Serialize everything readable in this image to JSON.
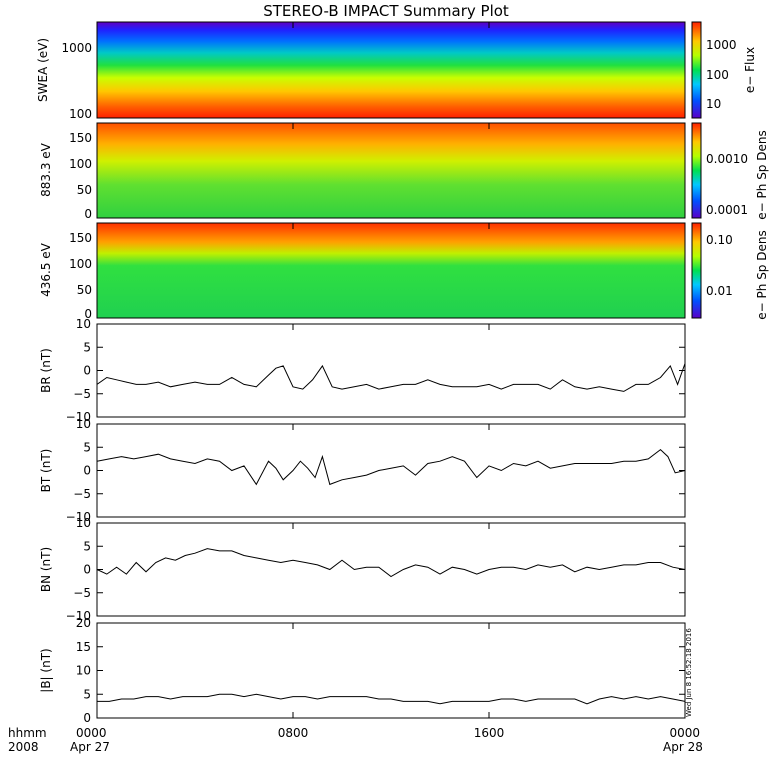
{
  "title": "STEREO-B IMPACT Summary Plot",
  "footer": {
    "left_top": "hhmm",
    "left_bottom": "2008",
    "date_start": "Apr 27",
    "date_end": "Apr 28",
    "timestamp": "Wed Jun 8 16:52:18 2016"
  },
  "x_axis": {
    "ticks": [
      {
        "hour": 0,
        "label": "0000"
      },
      {
        "hour": 8,
        "label": "0800"
      },
      {
        "hour": 16,
        "label": "1600"
      },
      {
        "hour": 24,
        "label": "0000"
      }
    ],
    "range_hours": [
      0,
      24
    ]
  },
  "chart_data": [
    {
      "type": "heatmap",
      "ylabel": "SWEA (eV)",
      "yscale": "log",
      "ylim": [
        100,
        2000
      ],
      "ytick_labels": [
        "100",
        "1000"
      ],
      "colorbar": {
        "label": "e− Flux",
        "scale": "log",
        "tick_labels": [
          "10",
          "100",
          "1000"
        ],
        "colormap": "rainbow"
      },
      "description_of_values": "energy spectrum, flux highest at low energies (red near 100 eV) decreasing to blue/purple near 2000 eV"
    },
    {
      "type": "heatmap",
      "ylabel": "883.3 eV",
      "ylim": [
        0,
        180
      ],
      "ytick_labels": [
        "0",
        "50",
        "100",
        "150"
      ],
      "colorbar": {
        "label": "e− Ph Sp Dens",
        "scale": "log",
        "tick_labels": [
          "0.0001",
          "0.0010"
        ],
        "colormap": "rainbow"
      },
      "description_of_values": "pitch-angle distribution, enhanced (orange/red) near 150-180 deg, green/yellow elsewhere"
    },
    {
      "type": "heatmap",
      "ylabel": "436.5 eV",
      "ylim": [
        0,
        180
      ],
      "ytick_labels": [
        "0",
        "50",
        "100",
        "150"
      ],
      "colorbar": {
        "label": "e− Ph Sp Dens",
        "scale": "log",
        "tick_labels": [
          "0.01",
          "0.10"
        ],
        "colormap": "rainbow"
      },
      "description_of_values": "pitch-angle distribution, strong red/orange band 120-180 deg, green below"
    },
    {
      "type": "line",
      "ylabel": "BR (nT)",
      "ylim": [
        -10,
        10
      ],
      "ytick_labels": [
        "−10",
        "−5",
        "0",
        "5",
        "10"
      ],
      "x": [
        0,
        0.4,
        0.8,
        1.2,
        1.6,
        2,
        2.5,
        3,
        3.5,
        4,
        4.5,
        5,
        5.5,
        6,
        6.5,
        7,
        7.3,
        7.6,
        8,
        8.4,
        8.8,
        9.2,
        9.6,
        10,
        10.5,
        11,
        11.5,
        12,
        12.5,
        13,
        13.5,
        14,
        14.5,
        15,
        15.5,
        16,
        16.5,
        17,
        17.5,
        18,
        18.5,
        19,
        19.5,
        20,
        20.5,
        21,
        21.5,
        22,
        22.5,
        23,
        23.4,
        23.7,
        24
      ],
      "y": [
        -3,
        -1.5,
        -2,
        -2.5,
        -3,
        -3,
        -2.5,
        -3.5,
        -3,
        -2.5,
        -3,
        -3,
        -1.5,
        -3,
        -3.5,
        -1,
        0.5,
        1,
        -3.5,
        -4,
        -2,
        1,
        -3.5,
        -4,
        -3.5,
        -3,
        -4,
        -3.5,
        -3,
        -3,
        -2,
        -3,
        -3.5,
        -3.5,
        -3.5,
        -3,
        -4,
        -3,
        -3,
        -3,
        -4,
        -2,
        -3.5,
        -4,
        -3.5,
        -4,
        -4.5,
        -3,
        -3,
        -1.5,
        1,
        -3,
        1.5
      ]
    },
    {
      "type": "line",
      "ylabel": "BT (nT)",
      "ylim": [
        -10,
        10
      ],
      "ytick_labels": [
        "−10",
        "−5",
        "0",
        "5",
        "10"
      ],
      "x": [
        0,
        0.5,
        1,
        1.5,
        2,
        2.5,
        3,
        3.5,
        4,
        4.5,
        5,
        5.5,
        6,
        6.5,
        7,
        7.3,
        7.6,
        8,
        8.3,
        8.6,
        8.9,
        9.2,
        9.5,
        10,
        10.5,
        11,
        11.5,
        12,
        12.5,
        13,
        13.5,
        14,
        14.5,
        15,
        15.5,
        16,
        16.5,
        17,
        17.5,
        18,
        18.5,
        19,
        19.5,
        20,
        20.5,
        21,
        21.5,
        22,
        22.5,
        23,
        23.3,
        23.6,
        24
      ],
      "y": [
        2,
        2.5,
        3,
        2.5,
        3,
        3.5,
        2.5,
        2,
        1.5,
        2.5,
        2,
        0,
        1,
        -3,
        2,
        0.5,
        -2,
        0,
        2,
        0.5,
        -1.5,
        3,
        -3,
        -2,
        -1.5,
        -1,
        0,
        0.5,
        1,
        -1,
        1.5,
        2,
        3,
        2,
        -1.5,
        1,
        0,
        1.5,
        1,
        2,
        0.5,
        1,
        1.5,
        1.5,
        1.5,
        1.5,
        2,
        2,
        2.5,
        4.5,
        3,
        -0.5,
        0
      ]
    },
    {
      "type": "line",
      "ylabel": "BN (nT)",
      "ylim": [
        -10,
        10
      ],
      "ytick_labels": [
        "−10",
        "−5",
        "0",
        "5",
        "10"
      ],
      "x": [
        0,
        0.4,
        0.8,
        1.2,
        1.6,
        2,
        2.4,
        2.8,
        3.2,
        3.6,
        4,
        4.5,
        5,
        5.5,
        6,
        6.5,
        7,
        7.5,
        8,
        8.5,
        9,
        9.5,
        10,
        10.5,
        11,
        11.5,
        12,
        12.5,
        13,
        13.5,
        14,
        14.5,
        15,
        15.5,
        16,
        16.5,
        17,
        17.5,
        18,
        18.5,
        19,
        19.5,
        20,
        20.5,
        21,
        21.5,
        22,
        22.5,
        23,
        23.5,
        24
      ],
      "y": [
        0,
        -1,
        0.5,
        -1,
        1.5,
        -0.5,
        1.5,
        2.5,
        2,
        3,
        3.5,
        4.5,
        4,
        4,
        3,
        2.5,
        2,
        1.5,
        2,
        1.5,
        1,
        0,
        2,
        0,
        0.5,
        0.5,
        -1.5,
        0,
        1,
        0.5,
        -1,
        0.5,
        0,
        -1,
        0,
        0.5,
        0.5,
        0,
        1,
        0.5,
        1,
        -0.5,
        0.5,
        0,
        0.5,
        1,
        1,
        1.5,
        1.5,
        0.5,
        0
      ]
    },
    {
      "type": "line",
      "ylabel": "|B| (nT)",
      "ylim": [
        0,
        20
      ],
      "ytick_labels": [
        "0",
        "5",
        "10",
        "15",
        "20"
      ],
      "x": [
        0,
        0.5,
        1,
        1.5,
        2,
        2.5,
        3,
        3.5,
        4,
        4.5,
        5,
        5.5,
        6,
        6.5,
        7,
        7.5,
        8,
        8.5,
        9,
        9.5,
        10,
        10.5,
        11,
        11.5,
        12,
        12.5,
        13,
        13.5,
        14,
        14.5,
        15,
        15.5,
        16,
        16.5,
        17,
        17.5,
        18,
        18.5,
        19,
        19.5,
        20,
        20.5,
        21,
        21.5,
        22,
        22.5,
        23,
        23.5,
        24
      ],
      "y": [
        3.5,
        3.5,
        4,
        4,
        4.5,
        4.5,
        4,
        4.5,
        4.5,
        4.5,
        5,
        5,
        4.5,
        5,
        4.5,
        4,
        4.5,
        4.5,
        4,
        4.5,
        4.5,
        4.5,
        4.5,
        4,
        4,
        3.5,
        3.5,
        3.5,
        3,
        3.5,
        3.5,
        3.5,
        3.5,
        4,
        4,
        3.5,
        4,
        4,
        4,
        4,
        3,
        4,
        4.5,
        4,
        4.5,
        4,
        4.5,
        4,
        3.5
      ]
    }
  ]
}
